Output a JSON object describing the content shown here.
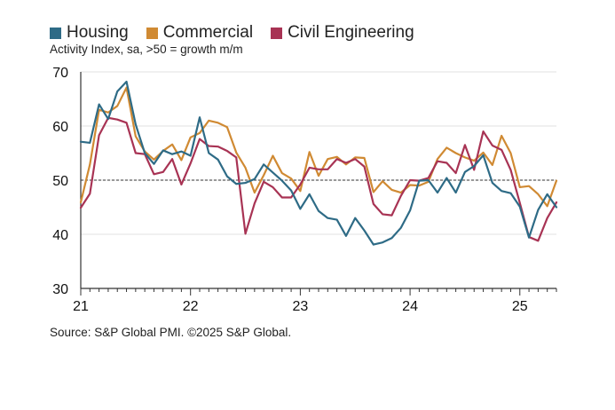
{
  "chart_data": {
    "type": "line",
    "subtitle": "Activity Index, sa, >50 = growth m/m",
    "source": "Source: S&P Global PMI. ©2025 S&P Global.",
    "ylim": [
      30,
      70
    ],
    "yticks": [
      30,
      40,
      50,
      60,
      70
    ],
    "xlim": [
      0,
      52
    ],
    "xticks": [
      {
        "label": "21",
        "pos": 0
      },
      {
        "label": "22",
        "pos": 12
      },
      {
        "label": "23",
        "pos": 24
      },
      {
        "label": "24",
        "pos": 36
      },
      {
        "label": "25",
        "pos": 48
      }
    ],
    "reference_line": 50,
    "grid": true,
    "legend_position": "top-left",
    "series": [
      {
        "name": "Housing",
        "color": "#2e6b86",
        "values": [
          57.1,
          56.9,
          64.0,
          61.3,
          66.4,
          68.2,
          60.3,
          55.0,
          53.0,
          55.5,
          54.8,
          55.3,
          54.5,
          61.6,
          55.0,
          53.8,
          50.7,
          49.3,
          49.5,
          50.2,
          52.9,
          51.4,
          49.9,
          48.1,
          44.7,
          47.4,
          44.3,
          43.0,
          42.7,
          39.7,
          43.0,
          40.7,
          38.1,
          38.5,
          39.3,
          41.2,
          44.4,
          49.9,
          50.0,
          47.7,
          50.4,
          47.7,
          51.5,
          52.6,
          54.6,
          49.5,
          48.0,
          47.6,
          45.1,
          39.4,
          44.5,
          47.4,
          45.0
        ]
      },
      {
        "name": "Commercial",
        "color": "#d08a33",
        "values": [
          45.9,
          52.9,
          63.0,
          62.5,
          63.7,
          67.1,
          58.1,
          55.3,
          53.8,
          55.4,
          56.6,
          53.7,
          57.9,
          58.7,
          61.0,
          60.6,
          59.8,
          55.1,
          52.3,
          47.7,
          50.9,
          54.5,
          51.3,
          50.3,
          48.0,
          55.2,
          50.8,
          53.9,
          54.3,
          52.9,
          54.2,
          54.1,
          47.8,
          49.8,
          48.2,
          47.7,
          49.1,
          49.0,
          49.7,
          53.9,
          56.0,
          55.0,
          54.2,
          53.6,
          55.1,
          52.8,
          58.2,
          55.0,
          48.7,
          48.9,
          47.4,
          45.2,
          49.9
        ]
      },
      {
        "name": "Civil Engineering",
        "color": "#a83354",
        "values": [
          44.9,
          47.5,
          58.3,
          61.5,
          61.2,
          60.6,
          55.0,
          54.8,
          51.1,
          51.5,
          53.9,
          49.2,
          53.1,
          57.6,
          56.3,
          56.2,
          55.4,
          54.2,
          40.1,
          45.7,
          49.7,
          48.7,
          46.8,
          46.8,
          49.2,
          52.3,
          52.0,
          52.0,
          53.9,
          53.2,
          53.9,
          52.5,
          45.6,
          43.7,
          43.5,
          47.1,
          50.0,
          49.9,
          50.4,
          53.5,
          53.2,
          51.3,
          56.5,
          51.9,
          59.0,
          56.4,
          55.6,
          51.9,
          45.8,
          39.5,
          38.8,
          43.0,
          45.9
        ]
      }
    ]
  }
}
